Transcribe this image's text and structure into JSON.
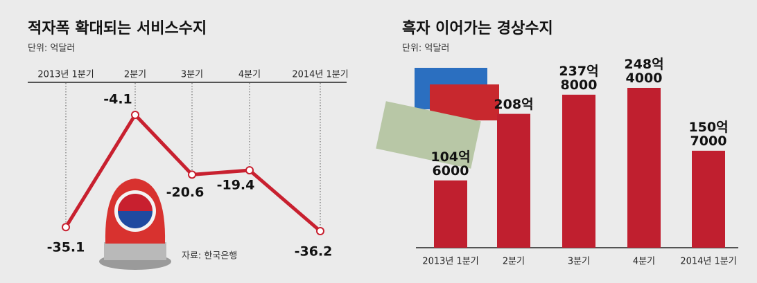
{
  "chart_data": [
    {
      "type": "line",
      "title": "적자폭 확대되는 서비스수지",
      "subtitle": "단위: 억달러",
      "categories": [
        "2013년 1분기",
        "2분기",
        "3분기",
        "4분기",
        "2014년 1분기"
      ],
      "values": [
        -35.1,
        -4.1,
        -20.6,
        -19.4,
        -36.2
      ],
      "color": "#c8202f",
      "source": "자료: 한국은행"
    },
    {
      "type": "bar",
      "title": "흑자 이어가는 경상수지",
      "subtitle": "단위: 억달러",
      "categories": [
        "2013년 1분기",
        "2분기",
        "3분기",
        "4분기",
        "2014년 1분기"
      ],
      "values": [
        104.6,
        208,
        237.8,
        248.4,
        150.7
      ],
      "value_labels": [
        "104억\n6000",
        "208억",
        "237억\n8000",
        "248억\n4000",
        "150억\n7000"
      ],
      "color": "#c01f2f"
    }
  ]
}
